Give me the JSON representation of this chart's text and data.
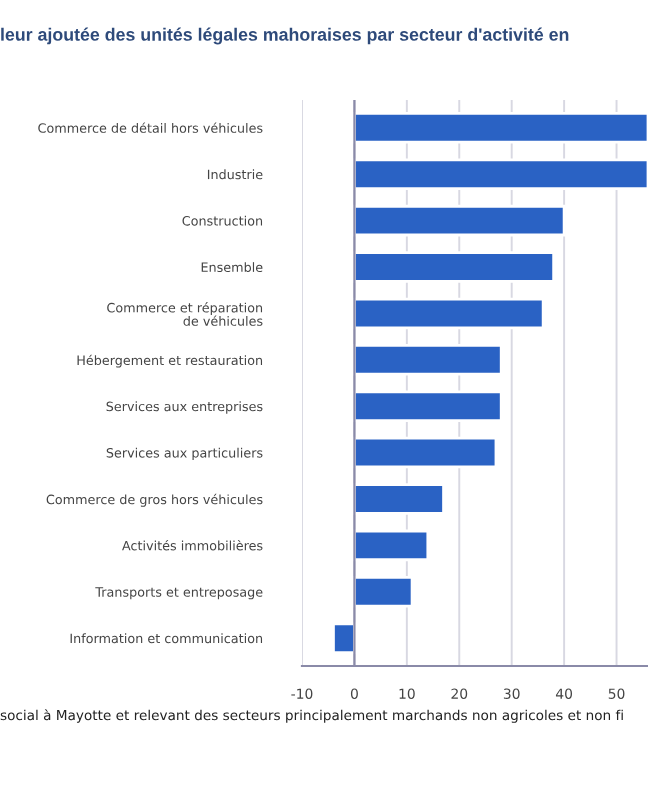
{
  "chart_data": {
    "type": "bar",
    "orientation": "horizontal",
    "title": "leur ajoutée des unités légales mahoraises par secteur d'activité en",
    "categories": [
      "Commerce de détail hors véhicules",
      "Industrie",
      "Construction",
      "Ensemble",
      "Commerce et réparation\nde véhicules",
      "Hébergement et restauration",
      "Services aux entreprises",
      "Services aux particuliers",
      "Commerce de gros hors véhicules",
      "Activités immobilières",
      "Transports et entreposage",
      "Information et communication"
    ],
    "values": [
      56,
      56,
      40,
      38,
      36,
      28,
      28,
      27,
      17,
      14,
      11,
      -4
    ],
    "color": "#2a62c4",
    "xlim": [
      -10,
      56
    ],
    "xticks": [
      -10,
      0,
      10,
      20,
      30,
      40,
      50
    ],
    "grid": "x",
    "ref_lines": [
      {
        "axis": "x",
        "value": 0,
        "color": "#8a8aa8"
      }
    ],
    "annotations": [
      "social à Mayotte et relevant des secteurs principalement marchands non agricoles et non fi"
    ]
  }
}
